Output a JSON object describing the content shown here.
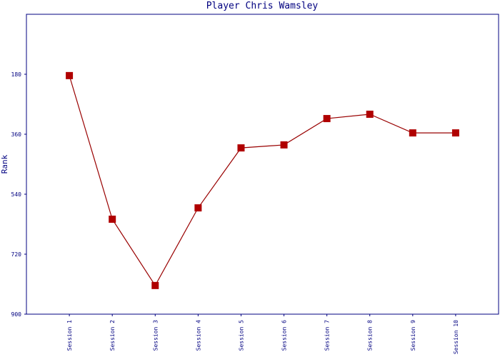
{
  "chart_data": {
    "type": "line",
    "title": "Player Chris Wamsley",
    "y_label": "Rank",
    "categories": [
      "Session 1",
      "Session 2",
      "Session 3",
      "Session 4",
      "Session 5",
      "Session 6",
      "Session 7",
      "Session 8",
      "Session 9",
      "Session 10"
    ],
    "values": [
      184,
      615,
      814,
      581,
      401,
      392,
      313,
      300,
      356,
      356
    ],
    "color": "#b00000",
    "line_color": "#990000",
    "ylim": [
      0,
      900
    ],
    "y_inverted": true,
    "yticks": [
      180,
      360,
      540,
      720,
      900
    ],
    "grid": false
  }
}
